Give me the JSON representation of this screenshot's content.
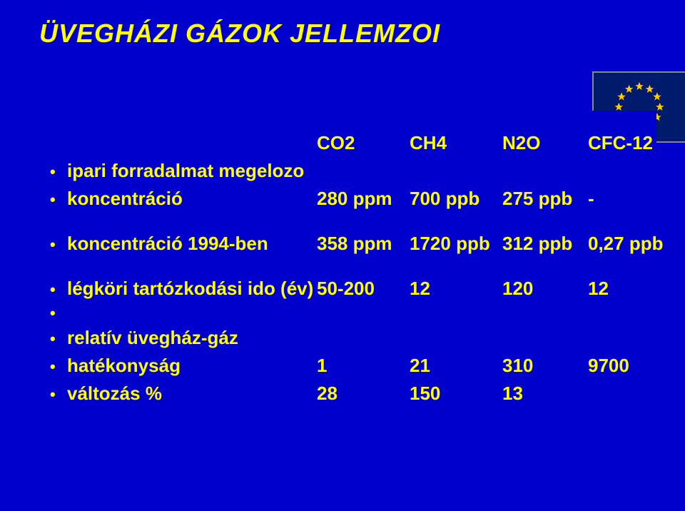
{
  "title": "ÜVEGHÁZI GÁZOK JELLEMZOI",
  "colors": {
    "slide_bg": "#0000cc",
    "text": "#ffff00",
    "flag_bg": "#001b6b",
    "star": "#ffcc00"
  },
  "flag": {
    "stars": 12
  },
  "header": {
    "c1_html": "CO<span class='sub'>2</span>",
    "c2_html": "CH<span class='sub'>4</span>",
    "c3_html": "N<span class='sub'>2</span>O",
    "c4": "CFC-12"
  },
  "rows": [
    {
      "label": "ipari forradalmat megelozo",
      "c1": "",
      "c2": "",
      "c3": "",
      "c4": ""
    },
    {
      "label": "koncentráció",
      "c1": "280 ppm",
      "c2": "700 ppb",
      "c3": "275 ppb",
      "c4": "-"
    }
  ],
  "rows2": [
    {
      "label": "koncentráció 1994-ben",
      "c1": "358 ppm",
      "c2": "1720 ppb",
      "c3": "312 ppb",
      "c4": "0,27 ppb"
    }
  ],
  "rows3": [
    {
      "label": "légköri tartózkodási ido (év)",
      "c1": "50-200",
      "c2": "12",
      "c3": "120",
      "c4": "12"
    },
    {
      "label": "",
      "c1": "",
      "c2": "",
      "c3": "",
      "c4": ""
    },
    {
      "label": "relatív üvegház-gáz",
      "c1": "",
      "c2": "",
      "c3": "",
      "c4": ""
    },
    {
      "label": "hatékonyság",
      "c1": "1",
      "c2": "21",
      "c3": "310",
      "c4": "9700"
    }
  ],
  "rows4": [
    {
      "label": "változás                          %",
      "c1": "28",
      "c2": "150",
      "c3": "13",
      "c4": ""
    }
  ]
}
